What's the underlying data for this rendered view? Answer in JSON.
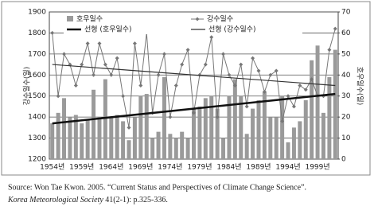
{
  "chart_data": {
    "type": "bar-line",
    "y_label": "강수일수(일)",
    "y2_label": "호우일수(일)",
    "categories": [
      "1954년",
      null,
      null,
      null,
      null,
      "1959년",
      null,
      null,
      null,
      null,
      "1964년",
      null,
      null,
      null,
      null,
      "1969년",
      null,
      null,
      null,
      null,
      "1974년",
      null,
      null,
      null,
      null,
      "1979년",
      null,
      null,
      null,
      null,
      "1984년",
      null,
      null,
      null,
      null,
      "1989년",
      null,
      null,
      null,
      null,
      "1994년",
      null,
      null,
      null,
      null,
      "1999년",
      null,
      null,
      null
    ],
    "series": [
      {
        "name": "호우일수",
        "color": "#9a9a9a",
        "axis": "y",
        "values": [
          1370,
          1420,
          1490,
          1400,
          1410,
          1370,
          1390,
          1530,
          1400,
          1580,
          1400,
          1410,
          1380,
          1290,
          1400,
          1500,
          1510,
          1300,
          1330,
          1590,
          1320,
          1300,
          1330,
          1300,
          1440,
          1450,
          1490,
          1500,
          1440,
          1300,
          1500,
          1580,
          1500,
          1320,
          1440,
          1480,
          1520,
          1400,
          1400,
          1500,
          1280,
          1350,
          1380,
          1480,
          1670,
          1740,
          1420,
          1590,
          1720
        ]
      },
      {
        "name": "강수일수",
        "color": "#777777",
        "axis": "y2",
        "values": [
          60,
          30,
          50,
          45,
          35,
          45,
          55,
          40,
          55,
          45,
          40,
          48,
          30,
          15,
          55,
          35,
          60,
          22,
          40,
          50,
          20,
          35,
          45,
          52,
          22,
          40,
          45,
          58,
          20,
          50,
          40,
          35,
          45,
          25,
          48,
          42,
          32,
          40,
          42,
          18,
          30,
          25,
          35,
          33,
          38,
          30,
          30,
          52,
          62
        ]
      }
    ],
    "trendlines": [
      {
        "name": "선형 (호우일수)",
        "axis": "y",
        "color": "#111111",
        "values": [
          1370,
          1510
        ]
      },
      {
        "name": "선형 (강수일수)",
        "axis": "y2",
        "color": "#333333",
        "values": [
          45,
          35
        ]
      }
    ],
    "ylim": [
      1200,
      1900
    ],
    "yticks": [
      1200,
      1300,
      1400,
      1500,
      1600,
      1700,
      1800,
      1900
    ],
    "y2lim": [
      0,
      70
    ],
    "y2ticks": [
      0,
      10,
      20,
      30,
      40,
      50,
      60,
      70
    ],
    "grid": true
  },
  "caption": {
    "line1": "Source: Won Tae Kwon. 2005. “Current Status and Perspectives of Climate Change Science”.",
    "journal": "Korea Meteorological Society",
    "rest": " 41(2-1): p.325-336."
  }
}
